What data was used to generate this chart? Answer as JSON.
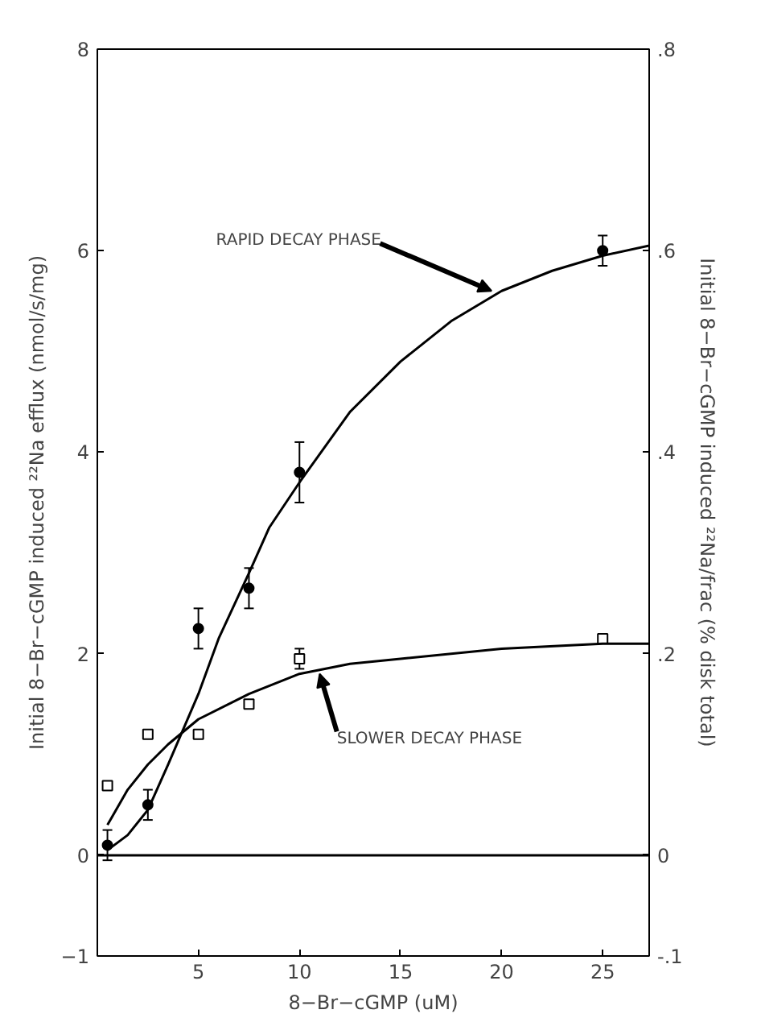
{
  "chart_data": {
    "type": "scatter",
    "xlabel": "8−Br−cGMP (uM)",
    "ylabel": "Initial 8−Br−cGMP induced ²²Na efflux (nmol/s/mg)",
    "y2label": "Initial 8−Br−cGMP induced ²²Na/frac (% disk total)",
    "xlim": [
      0,
      27.3
    ],
    "xticks": [
      5,
      10,
      15,
      20,
      25
    ],
    "ylim": [
      -1,
      8
    ],
    "yticks": [
      -1,
      0,
      2,
      4,
      6,
      8
    ],
    "y2lim": [
      -0.1,
      0.8
    ],
    "y2ticks": [
      {
        "value": -0.1,
        "label": "-.1"
      },
      0,
      {
        "value": 0.2,
        "label": ".2"
      },
      {
        "value": 0.4,
        "label": ".4"
      },
      {
        "value": 0.6,
        "label": ".6"
      },
      {
        "value": 0.8,
        "label": ".8"
      }
    ],
    "grid": false,
    "series": [
      {
        "color": "#000000",
        "marker": "circle",
        "x": [
          0.5,
          2.5,
          5,
          7.5,
          10,
          25
        ],
        "values": [
          0.1,
          0.5,
          2.25,
          2.65,
          3.8,
          6.0
        ],
        "errors": [
          0.15,
          0.15,
          0.2,
          0.2,
          0.3,
          0.15
        ]
      },
      {
        "color": "#000000",
        "marker": "square",
        "axis": "y2",
        "x": [
          0.5,
          2.5,
          5,
          7.5,
          10,
          25
        ],
        "values": [
          0.069,
          0.12,
          0.12,
          0.15,
          0.195,
          0.215
        ],
        "errors": [
          null,
          null,
          null,
          null,
          0.01,
          null
        ]
      },
      {
        "type": "line",
        "color": "#000000",
        "x": [
          0.5,
          1.5,
          2.5,
          3.5,
          5,
          6,
          7.5,
          8.5,
          10,
          12.5,
          15,
          17.5,
          20,
          22.5,
          25,
          27.3
        ],
        "values": [
          0.05,
          0.2,
          0.45,
          0.9,
          1.6,
          2.15,
          2.8,
          3.25,
          3.7,
          4.4,
          4.9,
          5.3,
          5.6,
          5.8,
          5.95,
          6.05
        ]
      },
      {
        "type": "line",
        "color": "#000000",
        "axis": "y2",
        "x": [
          0.5,
          1.5,
          2.5,
          3.5,
          5,
          7.5,
          10,
          12.5,
          15,
          20,
          25,
          27.3
        ],
        "values": [
          0.03,
          0.065,
          0.09,
          0.11,
          0.135,
          0.16,
          0.18,
          0.19,
          0.195,
          0.205,
          0.21,
          0.21
        ]
      }
    ],
    "ref_lines": [
      {
        "axis": "y",
        "value": 0
      }
    ],
    "annotations": [
      {
        "text": "RAPID DECAY PHASE",
        "x": 19.5,
        "y": 5.6
      },
      {
        "text": "SLOWER DECAY PHASE",
        "x": 11,
        "y": 1.8
      }
    ]
  }
}
